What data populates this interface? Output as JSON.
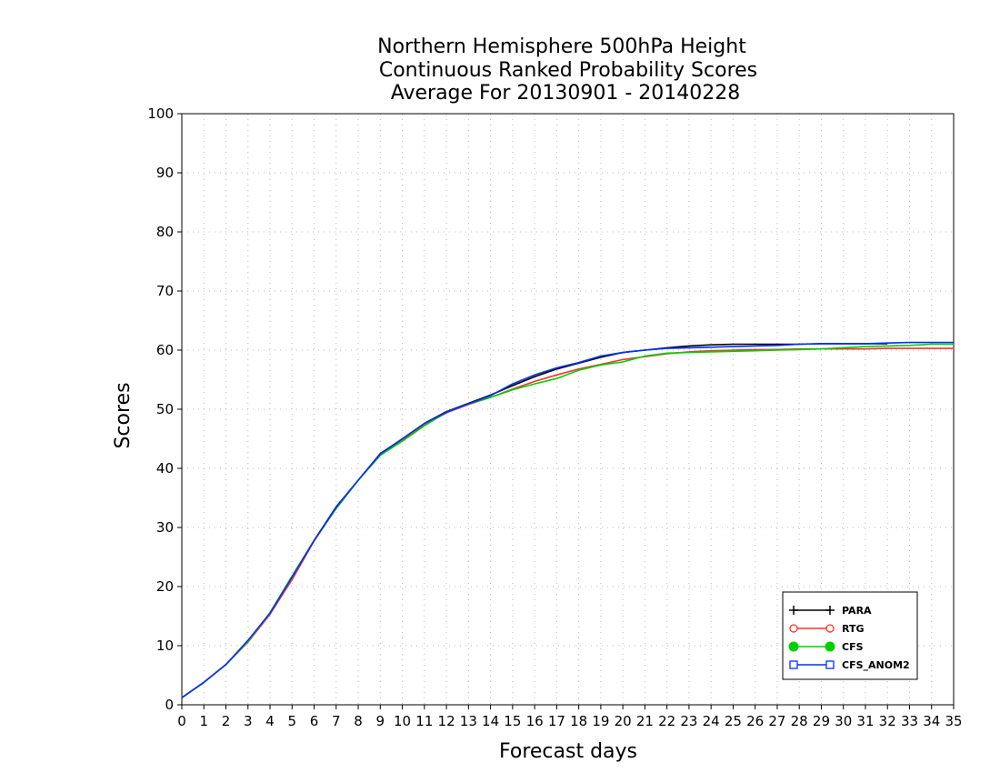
{
  "chart_data": {
    "type": "line",
    "title": [
      "Northern Hemisphere 500hPa Height",
      "Continuous Ranked Probability Scores",
      "Average For 20130901 - 20140228"
    ],
    "xlabel": "Forecast days",
    "ylabel": "Scores",
    "xlim": [
      0,
      35
    ],
    "ylim": [
      0,
      100
    ],
    "xticks": [
      0,
      1,
      2,
      3,
      4,
      5,
      6,
      7,
      8,
      9,
      10,
      11,
      12,
      13,
      14,
      15,
      16,
      17,
      18,
      19,
      20,
      21,
      22,
      23,
      24,
      25,
      26,
      27,
      28,
      29,
      30,
      31,
      32,
      33,
      34,
      35
    ],
    "yticks": [
      0,
      10,
      20,
      30,
      40,
      50,
      60,
      70,
      80,
      90,
      100
    ],
    "grid": true,
    "legend_position": "bottom-right",
    "x": [
      0,
      1,
      2,
      3,
      4,
      5,
      6,
      7,
      8,
      9,
      10,
      11,
      12,
      13,
      14,
      15,
      16,
      17,
      18,
      19,
      20,
      21,
      22,
      23,
      24,
      25,
      26,
      27,
      28,
      29,
      30,
      31,
      32,
      33,
      34,
      35
    ],
    "series": [
      {
        "name": "PARA",
        "color": "#000000",
        "marker": "plus",
        "values": [
          1.2,
          3.8,
          6.8,
          10.8,
          15.5,
          21.2,
          27.8,
          33.5,
          38.0,
          42.5,
          45.0,
          47.6,
          49.6,
          51.0,
          52.4,
          54.0,
          55.5,
          56.8,
          57.8,
          58.8,
          59.6,
          60.0,
          60.4,
          60.7,
          60.9,
          61.0,
          61.0,
          61.0,
          61.0,
          61.1,
          61.1,
          61.1,
          61.1,
          null,
          null,
          null
        ]
      },
      {
        "name": "RTG",
        "color": "#ff3030",
        "marker": "circle-open",
        "values": [
          1.2,
          3.8,
          6.8,
          10.6,
          15.3,
          21.2,
          27.7,
          33.3,
          38.0,
          42.4,
          44.8,
          47.3,
          49.4,
          50.8,
          52.0,
          53.4,
          54.7,
          55.8,
          56.8,
          57.6,
          58.4,
          58.9,
          59.4,
          59.7,
          59.9,
          60.0,
          60.1,
          60.1,
          60.2,
          60.2,
          60.2,
          60.2,
          60.3,
          60.3,
          60.3,
          60.3
        ]
      },
      {
        "name": "CFS",
        "color": "#00d000",
        "marker": "circle-filled",
        "values": [
          1.2,
          3.8,
          6.8,
          10.7,
          15.6,
          21.8,
          27.8,
          33.2,
          38.0,
          42.2,
          44.6,
          47.2,
          49.5,
          50.9,
          52.0,
          53.3,
          54.3,
          55.2,
          56.6,
          57.5,
          58.0,
          59.0,
          59.5,
          59.6,
          59.7,
          59.8,
          59.9,
          60.0,
          60.1,
          60.2,
          60.4,
          60.6,
          60.7,
          60.8,
          61.0,
          61.0
        ]
      },
      {
        "name": "CFS_ANOM2",
        "color": "#0030ff",
        "marker": "square-open",
        "values": [
          1.2,
          3.8,
          6.8,
          10.9,
          15.5,
          21.6,
          27.8,
          33.4,
          38.0,
          42.4,
          45.0,
          47.6,
          49.5,
          50.9,
          52.3,
          54.3,
          55.8,
          57.0,
          57.9,
          59.0,
          59.6,
          60.0,
          60.3,
          60.4,
          60.5,
          60.6,
          60.7,
          60.8,
          61.0,
          61.1,
          61.1,
          61.1,
          61.2,
          61.3,
          61.3,
          61.3
        ]
      }
    ]
  }
}
